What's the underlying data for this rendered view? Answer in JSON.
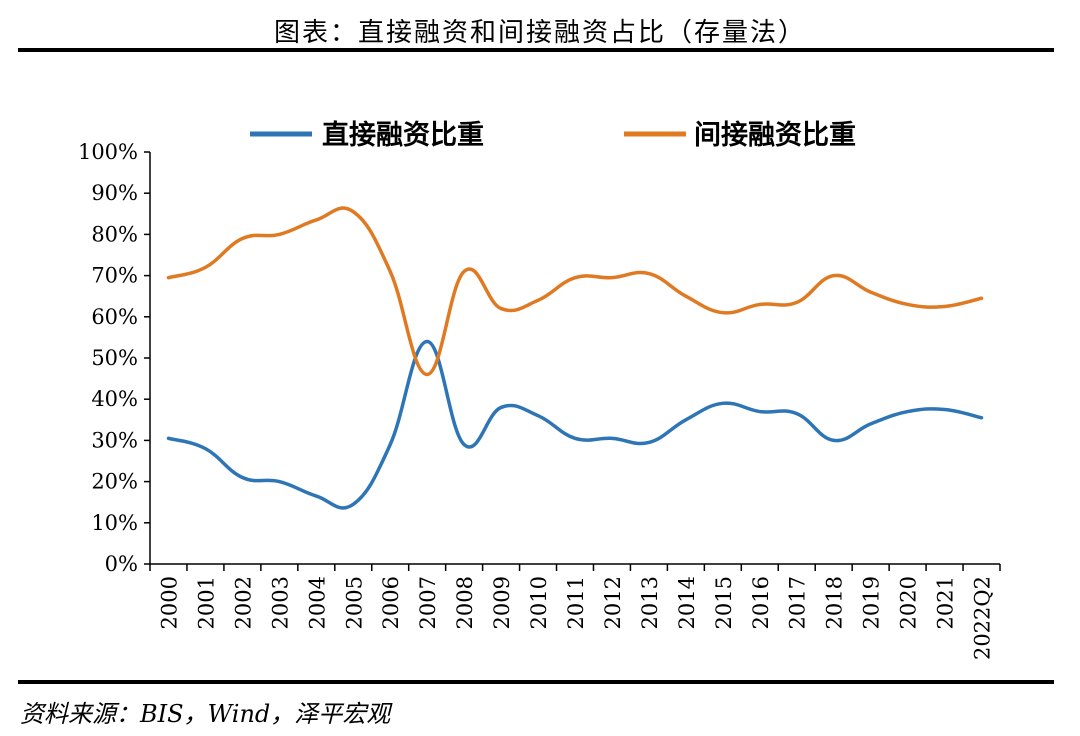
{
  "title": "图表：直接融资和间接融资占比（存量法）",
  "source": "资料来源：BIS，Wind，泽平宏观",
  "colors": {
    "direct": "#2E75B6",
    "indirect": "#E07A22",
    "axis": "#000000"
  },
  "chart_data": {
    "type": "line",
    "title": "图表：直接融资和间接融资占比（存量法）",
    "legend_position": "top",
    "grid": false,
    "ylim": [
      0,
      100
    ],
    "y_ticks": [
      "0%",
      "10%",
      "20%",
      "30%",
      "40%",
      "50%",
      "60%",
      "70%",
      "80%",
      "90%",
      "100%"
    ],
    "categories": [
      "2000",
      "2001",
      "2002",
      "2003",
      "2004",
      "2005",
      "2006",
      "2007",
      "2008",
      "2009",
      "2010",
      "2011",
      "2012",
      "2013",
      "2014",
      "2015",
      "2016",
      "2017",
      "2018",
      "2019",
      "2020",
      "2021",
      "2022Q2"
    ],
    "series": [
      {
        "name": "直接融资比重",
        "values": [
          30.5,
          28,
          21,
          20,
          16.5,
          14.5,
          29,
          54,
          29,
          38,
          36,
          30.5,
          30.5,
          29.5,
          35,
          39,
          37,
          36.5,
          30,
          34,
          37,
          37.5,
          35.5
        ]
      },
      {
        "name": "间接融资比重",
        "values": [
          69.5,
          72,
          79,
          80,
          83.5,
          85.5,
          71,
          46,
          71,
          62,
          64,
          69.5,
          69.5,
          70.5,
          65,
          61,
          63,
          63.5,
          70,
          66,
          63,
          62.5,
          64.5
        ]
      }
    ]
  }
}
